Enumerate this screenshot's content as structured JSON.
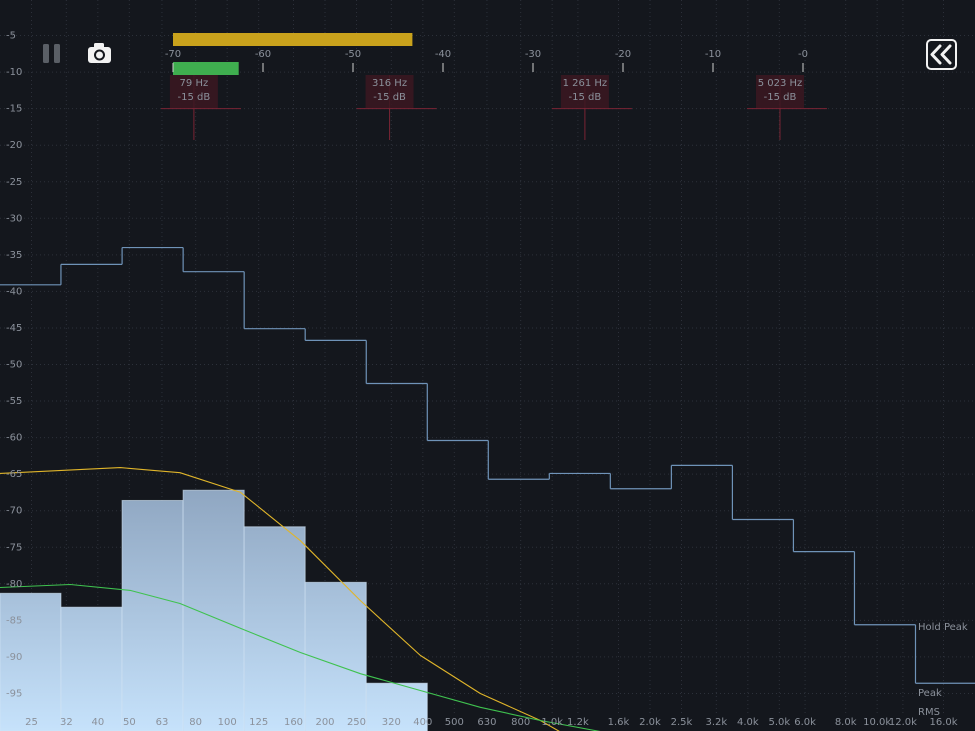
{
  "chart_data": {
    "type": "histogram",
    "xscale": "log",
    "xlim": [
      20,
      20000
    ],
    "ylim": [
      -100,
      0
    ],
    "yticks": [
      -5,
      -10,
      -15,
      -20,
      -25,
      -30,
      -35,
      -40,
      -45,
      -50,
      -55,
      -60,
      -65,
      -70,
      -75,
      -80,
      -85,
      -90,
      -95
    ],
    "xticks": [
      25,
      32,
      40,
      50,
      63,
      80,
      100,
      125,
      160,
      200,
      250,
      320,
      400,
      500,
      630,
      800,
      {
        "value": 1000,
        "label": "1.0k"
      },
      {
        "value": 1200,
        "label": "1.2k"
      },
      {
        "value": 1600,
        "label": "1.6k"
      },
      {
        "value": 2000,
        "label": "2.0k"
      },
      {
        "value": 2500,
        "label": "2.5k"
      },
      {
        "value": 3200,
        "label": "3.2k"
      },
      {
        "value": 4000,
        "label": "4.0k"
      },
      {
        "value": 5000,
        "label": "5.0k"
      },
      {
        "value": 6000,
        "label": "6.0k"
      },
      {
        "value": 8000,
        "label": "8.0k"
      },
      {
        "value": 10000,
        "label": "10.0k"
      },
      {
        "value": 12000,
        "label": "12.0k"
      },
      {
        "value": 16000,
        "label": "16.0k"
      }
    ],
    "grid": true,
    "bins": [
      20,
      30.8,
      47.5,
      73.2,
      112.8,
      173.8,
      267.9,
      412.8,
      636,
      980,
      1510,
      2327,
      3586,
      5525,
      8514,
      13120,
      20000
    ],
    "bars": {
      "color": "#a9c3df",
      "values": [
        -81.3,
        -83.2,
        -68.6,
        -67.2,
        -72.2,
        -79.8,
        -93.6,
        null,
        null,
        null,
        null,
        null,
        null,
        null,
        null,
        null
      ]
    },
    "series": [
      {
        "name": "Hold Peak",
        "color": "#6f93b8",
        "style": "step",
        "values": [
          -39.1,
          -36.3,
          -34.0,
          -37.3,
          -45.1,
          -46.7,
          -52.6,
          -60.4,
          -65.7,
          -64.9,
          -67.0,
          -63.8,
          -71.2,
          -75.6,
          -85.6,
          -93.6
        ]
      },
      {
        "name": "Peak",
        "color": "#e0b52a",
        "style": "line",
        "x": [
          20,
          46.9,
          71.6,
          110,
          168,
          257,
          393,
          601,
          920,
          1054
        ],
        "values": [
          -64.9,
          -64.1,
          -64.8,
          -67.5,
          -74.1,
          -82.3,
          -89.8,
          -95,
          -98.7,
          -100.2
        ]
      },
      {
        "name": "RMS",
        "color": "#3fc24f",
        "style": "line",
        "x": [
          20,
          32.9,
          50.3,
          71.6,
          110,
          168,
          257,
          393,
          601,
          920,
          1407
        ],
        "values": [
          -80.5,
          -80.1,
          -80.9,
          -82.7,
          -86.1,
          -89.4,
          -92.3,
          -94.6,
          -96.9,
          -98.7,
          -100.2
        ]
      }
    ]
  },
  "meter": {
    "xlim": [
      -70,
      0
    ],
    "ticks": [
      -70,
      -60,
      -50,
      -40,
      -30,
      -20,
      -10,
      {
        "value": 0,
        "label": "-0"
      }
    ],
    "peak": -43.4,
    "peak_color": "#c9a21c",
    "rms": -62.7,
    "rms_color": "#3fae4f"
  },
  "markers": [
    {
      "freq": 79,
      "freq_label": "79 Hz",
      "level": -15,
      "level_label": "-15 dB"
    },
    {
      "freq": 316,
      "freq_label": "316 Hz",
      "level": -15,
      "level_label": "-15 dB"
    },
    {
      "freq": 1261,
      "freq_label": "1 261 Hz",
      "level": -15,
      "level_label": "-15 dB"
    },
    {
      "freq": 5023,
      "freq_label": "5 023 Hz",
      "level": -15,
      "level_label": "-15 dB"
    }
  ]
}
